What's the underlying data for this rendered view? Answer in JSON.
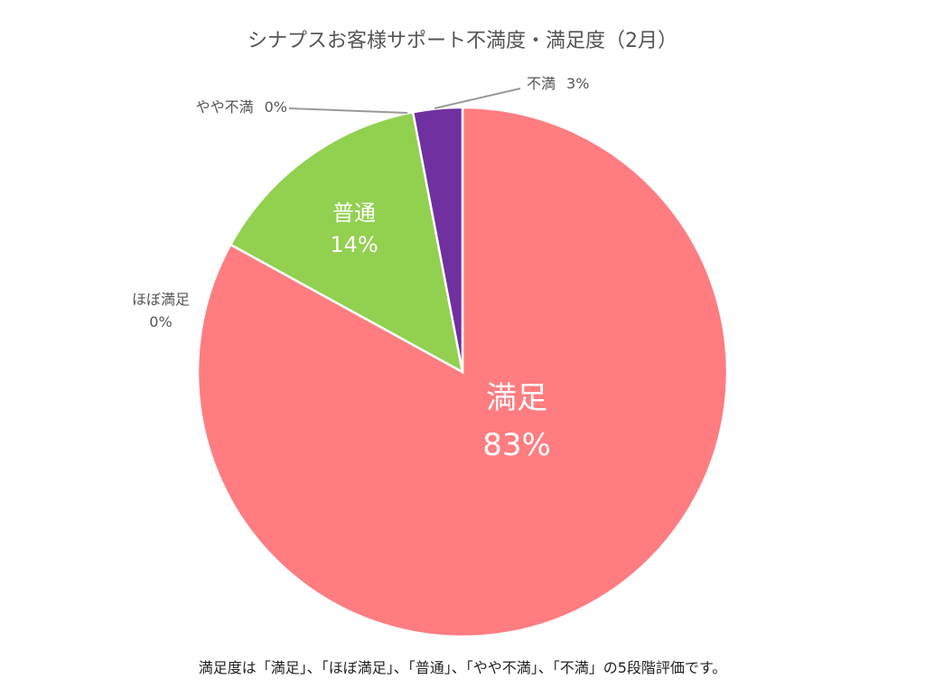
{
  "chart_data": {
    "type": "pie",
    "title": "シナプスお客様サポート不満度・満足度（2月）",
    "slices": [
      {
        "name": "満足",
        "value": 83,
        "label": "83%",
        "color": "#FF7C80"
      },
      {
        "name": "ほぼ満足",
        "value": 0,
        "label": "0%",
        "color": "#FFC000"
      },
      {
        "name": "普通",
        "value": 14,
        "label": "14%",
        "color": "#92D050"
      },
      {
        "name": "やや不満",
        "value": 0,
        "label": "0%",
        "color": "#5B9BD5"
      },
      {
        "name": "不満",
        "value": 3,
        "label": "3%",
        "color": "#7030A0"
      }
    ],
    "note": "満足度は「満足」、「ほぼ満足」、「普通」、「やや不満」、「不満」の5段階評価です。"
  }
}
